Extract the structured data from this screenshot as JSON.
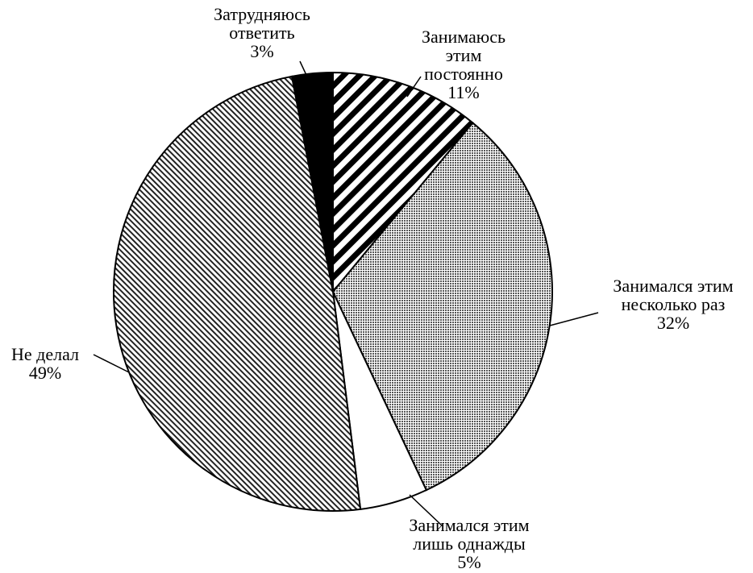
{
  "chart_data": {
    "type": "pie",
    "categories": [
      "Занимаюсь этим постоянно",
      "Занимался этим несколько раз",
      "Занимался этим лишь однажды",
      "Не делал",
      "Затрудняюсь ответить"
    ],
    "values": [
      11,
      32,
      5,
      49,
      3
    ],
    "value_labels": [
      "11%",
      "32%",
      "5%",
      "49%",
      "3%"
    ]
  }
}
